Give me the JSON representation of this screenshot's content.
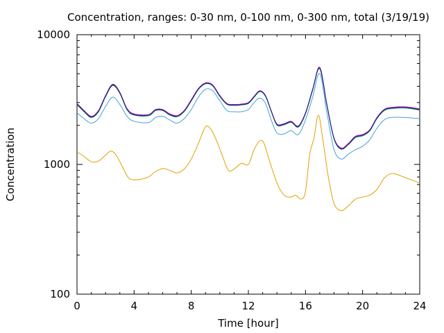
{
  "chart_data": {
    "type": "line",
    "title": "Concentration, ranges: 0-30 nm, 0-100 nm, 0-300 nm, total (3/19/19)",
    "xlabel": "Time [hour]",
    "ylabel": "Concentration",
    "xlim": [
      0,
      24
    ],
    "ylim": [
      100,
      10000
    ],
    "y_scale": "log",
    "grid": false,
    "x_ticks": [
      0,
      4,
      8,
      12,
      16,
      20,
      24
    ],
    "x_tick_labels": [
      "0",
      "4",
      "8",
      "12",
      "16",
      "20",
      "24"
    ],
    "y_ticks": [
      100,
      1000,
      10000
    ],
    "y_tick_labels": [
      "100",
      "1000",
      "10000"
    ],
    "series": [
      {
        "color": "#e0a000",
        "x": [
          0,
          0.5,
          1,
          1.5,
          2,
          2.4,
          2.8,
          3.2,
          3.6,
          4,
          4.5,
          5,
          5.5,
          6,
          6.5,
          7,
          7.5,
          8,
          8.5,
          9,
          9.4,
          9.8,
          10.2,
          10.6,
          11,
          11.5,
          12,
          12.4,
          12.8,
          13.1,
          13.5,
          14,
          14.5,
          15,
          15.3,
          15.7,
          16,
          16.3,
          16.6,
          16.9,
          17.2,
          17.6,
          18,
          18.5,
          19,
          19.5,
          20,
          20.5,
          21,
          21.5,
          22,
          22.5,
          23,
          24
        ],
        "values": [
          1250,
          1150,
          1050,
          1060,
          1180,
          1270,
          1150,
          950,
          790,
          760,
          770,
          800,
          880,
          930,
          900,
          860,
          920,
          1100,
          1450,
          1950,
          1850,
          1500,
          1150,
          900,
          920,
          1020,
          1000,
          1300,
          1520,
          1450,
          1050,
          720,
          580,
          560,
          580,
          540,
          620,
          1200,
          1600,
          2400,
          1600,
          800,
          500,
          440,
          480,
          540,
          560,
          580,
          640,
          780,
          850,
          830,
          790,
          720
        ]
      },
      {
        "color": "#40a0d8",
        "x": [
          0,
          0.5,
          1,
          1.5,
          2,
          2.5,
          3,
          3.5,
          4,
          5,
          5.5,
          6,
          6.5,
          7,
          7.5,
          8,
          8.5,
          9,
          9.5,
          10,
          10.5,
          11,
          11.5,
          12,
          12.4,
          12.8,
          13.2,
          13.6,
          14,
          14.5,
          15,
          15.5,
          16,
          16.5,
          17,
          17.5,
          18,
          18.5,
          19,
          19.5,
          20,
          20.5,
          21,
          21.5,
          22,
          23,
          24
        ],
        "values": [
          2500,
          2250,
          2080,
          2250,
          2800,
          3300,
          2900,
          2350,
          2150,
          2100,
          2300,
          2350,
          2200,
          2080,
          2250,
          2650,
          3300,
          3800,
          3700,
          3100,
          2600,
          2550,
          2550,
          2650,
          3000,
          3250,
          2950,
          2200,
          1750,
          1720,
          1820,
          1700,
          2200,
          3300,
          5000,
          2500,
          1300,
          1100,
          1200,
          1300,
          1380,
          1550,
          1900,
          2200,
          2300,
          2300,
          2250
        ]
      },
      {
        "color": "#c000c0",
        "x": [
          0,
          0.5,
          1,
          1.5,
          2,
          2.5,
          3,
          3.5,
          4,
          5,
          5.5,
          6,
          6.5,
          7,
          7.5,
          8,
          8.5,
          9,
          9.5,
          10,
          10.5,
          11,
          11.5,
          12,
          12.4,
          12.8,
          13.2,
          13.6,
          14,
          14.5,
          15,
          15.5,
          16,
          16.5,
          17,
          17.5,
          18,
          18.5,
          19,
          19.5,
          20,
          20.5,
          21,
          21.5,
          22,
          23,
          24
        ],
        "values": [
          2950,
          2600,
          2350,
          2600,
          3400,
          4150,
          3600,
          2700,
          2450,
          2420,
          2650,
          2650,
          2450,
          2380,
          2600,
          3150,
          3850,
          4250,
          4100,
          3400,
          2950,
          2900,
          2920,
          3000,
          3350,
          3700,
          3400,
          2600,
          2050,
          2060,
          2150,
          1980,
          2500,
          3800,
          5600,
          2900,
          1600,
          1340,
          1450,
          1650,
          1700,
          1850,
          2300,
          2650,
          2750,
          2780,
          2680
        ]
      },
      {
        "color": "#00a050",
        "x": [
          0,
          0.5,
          1,
          1.5,
          2,
          2.5,
          3,
          3.5,
          4,
          5,
          5.5,
          6,
          6.5,
          7,
          7.5,
          8,
          8.5,
          9,
          9.5,
          10,
          10.5,
          11,
          11.5,
          12,
          12.4,
          12.8,
          13.2,
          13.6,
          14,
          14.5,
          15,
          15.5,
          16,
          16.5,
          17,
          17.5,
          18,
          18.5,
          19,
          19.5,
          20,
          20.5,
          21,
          21.5,
          22,
          23,
          24
        ],
        "values": [
          2880,
          2540,
          2300,
          2540,
          3320,
          4050,
          3520,
          2640,
          2400,
          2370,
          2600,
          2600,
          2400,
          2330,
          2550,
          3080,
          3780,
          4180,
          4030,
          3340,
          2900,
          2850,
          2870,
          2950,
          3290,
          3640,
          3340,
          2560,
          2010,
          2020,
          2110,
          1940,
          2450,
          3720,
          5450,
          2840,
          1570,
          1310,
          1420,
          1610,
          1660,
          1810,
          2250,
          2590,
          2690,
          2720,
          2620
        ]
      },
      {
        "color": "#20208a",
        "x": [
          0,
          0.5,
          1,
          1.5,
          2,
          2.5,
          3,
          3.5,
          4,
          5,
          5.5,
          6,
          6.5,
          7,
          7.5,
          8,
          8.5,
          9,
          9.5,
          10,
          10.5,
          11,
          11.5,
          12,
          12.4,
          12.8,
          13.2,
          13.6,
          14,
          14.5,
          15,
          15.5,
          16,
          16.5,
          17,
          17.5,
          18,
          18.5,
          19,
          19.5,
          20,
          20.5,
          21,
          21.5,
          22,
          23,
          24
        ],
        "values": [
          2920,
          2570,
          2320,
          2570,
          3360,
          4100,
          3560,
          2670,
          2420,
          2400,
          2620,
          2620,
          2420,
          2350,
          2570,
          3110,
          3810,
          4210,
          4060,
          3370,
          2920,
          2870,
          2890,
          2970,
          3320,
          3670,
          3370,
          2580,
          2030,
          2040,
          2130,
          1960,
          2470,
          3760,
          5520,
          2870,
          1580,
          1320,
          1430,
          1630,
          1680,
          1830,
          2270,
          2620,
          2720,
          2750,
          2650
        ]
      }
    ]
  }
}
